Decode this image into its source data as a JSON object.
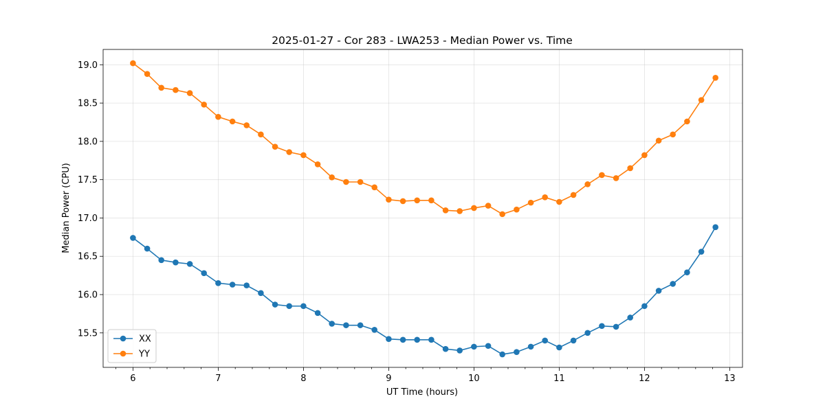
{
  "chart_data": {
    "type": "line",
    "title": "2025-01-27 - Cor 283 - LWA253 - Median Power vs. Time",
    "xlabel": "UT Time (hours)",
    "ylabel": "Median Power (CPU)",
    "xlim": [
      5.65,
      13.15
    ],
    "ylim": [
      15.05,
      19.2
    ],
    "x_ticks": [
      "6",
      "7",
      "8",
      "9",
      "10",
      "11",
      "12",
      "13"
    ],
    "y_ticks": [
      "15.5",
      "16.0",
      "16.5",
      "17.0",
      "17.5",
      "18.0",
      "18.5",
      "19.0"
    ],
    "grid": true,
    "legend_position": "lower-left",
    "x": [
      6.0,
      6.167,
      6.333,
      6.5,
      6.667,
      6.833,
      7.0,
      7.167,
      7.333,
      7.5,
      7.667,
      7.833,
      8.0,
      8.167,
      8.333,
      8.5,
      8.667,
      8.833,
      9.0,
      9.167,
      9.333,
      9.5,
      9.667,
      9.833,
      10.0,
      10.167,
      10.333,
      10.5,
      10.667,
      10.833,
      11.0,
      11.167,
      11.333,
      11.5,
      11.667,
      11.833,
      12.0,
      12.167,
      12.333,
      12.5,
      12.667,
      12.833
    ],
    "series": [
      {
        "name": "XX",
        "color": "#1f77b4",
        "values": [
          16.74,
          16.6,
          16.45,
          16.42,
          16.4,
          16.28,
          16.15,
          16.13,
          16.12,
          16.02,
          15.87,
          15.85,
          15.85,
          15.76,
          15.62,
          15.6,
          15.6,
          15.54,
          15.42,
          15.41,
          15.41,
          15.41,
          15.29,
          15.27,
          15.32,
          15.33,
          15.22,
          15.25,
          15.32,
          15.4,
          15.31,
          15.4,
          15.5,
          15.59,
          15.58,
          15.7,
          15.85,
          16.05,
          16.14,
          16.29,
          16.56,
          16.88
        ]
      },
      {
        "name": "YY",
        "color": "#ff7f0e",
        "values": [
          19.02,
          18.88,
          18.7,
          18.67,
          18.63,
          18.48,
          18.32,
          18.26,
          18.21,
          18.09,
          17.93,
          17.86,
          17.82,
          17.7,
          17.53,
          17.47,
          17.47,
          17.4,
          17.24,
          17.22,
          17.23,
          17.23,
          17.1,
          17.09,
          17.13,
          17.16,
          17.05,
          17.11,
          17.2,
          17.27,
          17.21,
          17.3,
          17.44,
          17.56,
          17.52,
          17.65,
          17.82,
          18.01,
          18.09,
          18.26,
          18.54,
          18.83
        ]
      }
    ]
  }
}
